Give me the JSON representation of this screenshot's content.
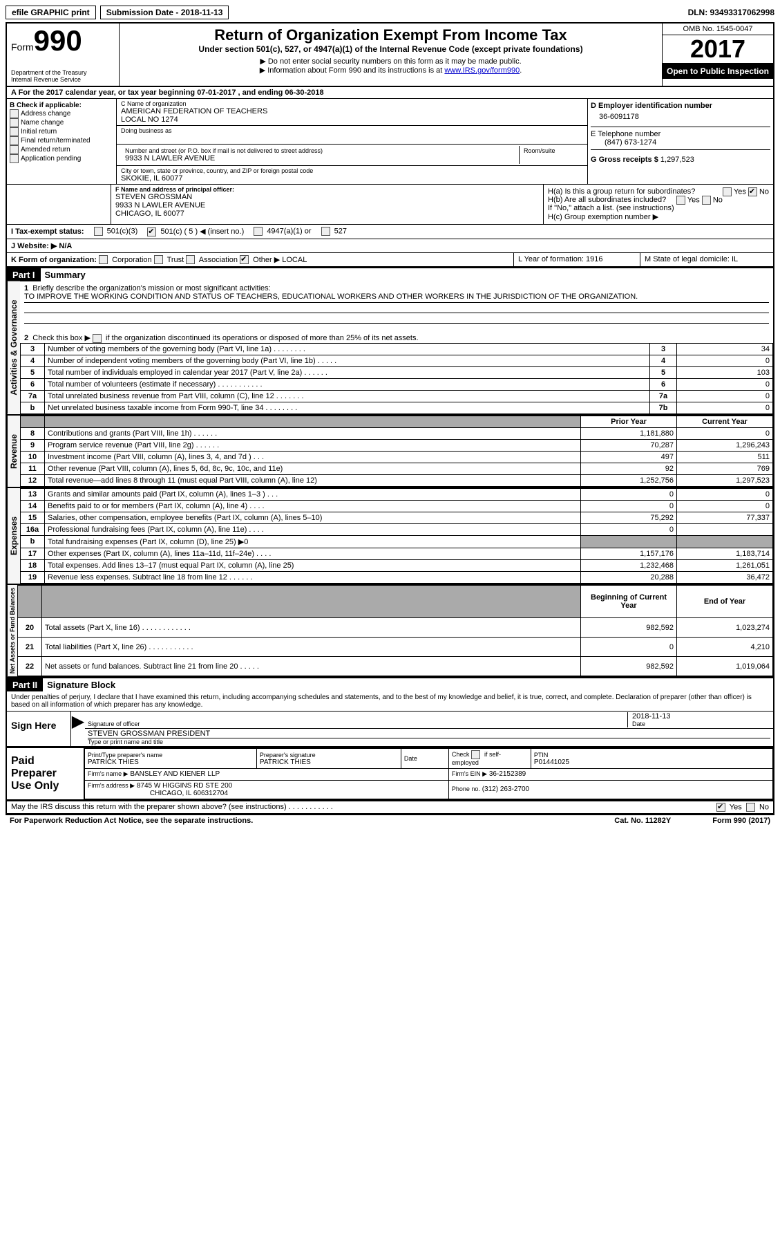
{
  "topbar": {
    "efile": "efile GRAPHIC print",
    "submission": "Submission Date - 2018-11-13",
    "dln": "DLN: 93493317062998"
  },
  "header": {
    "form_word": "Form",
    "form_num": "990",
    "dept1": "Department of the Treasury",
    "dept2": "Internal Revenue Service",
    "title": "Return of Organization Exempt From Income Tax",
    "subtitle": "Under section 501(c), 527, or 4947(a)(1) of the Internal Revenue Code (except private foundations)",
    "note1": "▶ Do not enter social security numbers on this form as it may be made public.",
    "note2_a": "▶ Information about Form 990 and its instructions is at ",
    "note2_link": "www.IRS.gov/form990",
    "omb": "OMB No. 1545-0047",
    "year": "2017",
    "open": "Open to Public Inspection"
  },
  "rowA": "A   For the 2017 calendar year, or tax year beginning 07-01-2017   , and ending 06-30-2018",
  "B": {
    "hdr": "B Check if applicable:",
    "c1": "Address change",
    "c2": "Name change",
    "c3": "Initial return",
    "c4": "Final return/terminated",
    "c5": "Amended return",
    "c6": "Application pending"
  },
  "C": {
    "name_lbl": "C Name of organization",
    "name1": "AMERICAN FEDERATION OF TEACHERS",
    "name2": "LOCAL NO 1274",
    "dba_lbl": "Doing business as",
    "addr_lbl": "Number and street (or P.O. box if mail is not delivered to street address)",
    "room_lbl": "Room/suite",
    "addr": "9933 N LAWLER AVENUE",
    "city_lbl": "City or town, state or province, country, and ZIP or foreign postal code",
    "city": "SKOKIE, IL  60077"
  },
  "D": {
    "lbl": "D Employer identification number",
    "val": "36-6091178"
  },
  "E": {
    "lbl": "E Telephone number",
    "val": "(847) 673-1274"
  },
  "G": {
    "lbl": "G Gross receipts $",
    "val": "1,297,523"
  },
  "F": {
    "lbl": "F  Name and address of principal officer:",
    "l1": "STEVEN GROSSMAN",
    "l2": "9933 N LAWLER AVENUE",
    "l3": "CHICAGO, IL  60077"
  },
  "H": {
    "a": "H(a)  Is this a group return for subordinates?",
    "b": "H(b)  Are all subordinates included?",
    "b2": "If \"No,\" attach a list. (see instructions)",
    "c": "H(c)  Group exemption number ▶",
    "yes": "Yes",
    "no": "No"
  },
  "I": {
    "lbl": "I   Tax-exempt status:",
    "o1": "501(c)(3)",
    "o2": "501(c) ( 5 ) ◀ (insert no.)",
    "o3": "4947(a)(1) or",
    "o4": "527"
  },
  "J": "J  Website: ▶  N/A",
  "K": {
    "lbl": "K Form of organization:",
    "o1": "Corporation",
    "o2": "Trust",
    "o3": "Association",
    "o4": "Other ▶",
    "other": "LOCAL"
  },
  "L": "L Year of formation: 1916",
  "M": "M State of legal domicile: IL",
  "part1": {
    "hdr": "Part I",
    "title": "Summary"
  },
  "summary": {
    "l1": "Briefly describe the organization's mission or most significant activities:",
    "l1v": "TO IMPROVE THE WORKING CONDITION AND STATUS OF TEACHERS, EDUCATIONAL WORKERS AND OTHER WORKERS IN THE JURISDICTION OF THE ORGANIZATION.",
    "l2a": "Check this box ▶",
    "l2b": "if the organization discontinued its operations or disposed of more than 25% of its net assets.",
    "rows_gov": [
      {
        "n": "3",
        "d": "Number of voting members of the governing body (Part VI, line 1a)   .     .     .     .     .     .     .     .",
        "b": "3",
        "v": "34"
      },
      {
        "n": "4",
        "d": "Number of independent voting members of the governing body (Part VI, line 1b)   .     .     .     .     .",
        "b": "4",
        "v": "0"
      },
      {
        "n": "5",
        "d": "Total number of individuals employed in calendar year 2017 (Part V, line 2a)   .     .     .     .     .     .",
        "b": "5",
        "v": "103"
      },
      {
        "n": "6",
        "d": "Total number of volunteers (estimate if necessary)   .     .     .     .     .     .     .     .     .     .     .",
        "b": "6",
        "v": "0"
      },
      {
        "n": "7a",
        "d": "Total unrelated business revenue from Part VIII, column (C), line 12   .     .     .     .     .     .     .",
        "b": "7a",
        "v": "0"
      },
      {
        "n": "b",
        "d": "Net unrelated business taxable income from Form 990-T, line 34   .     .     .     .     .     .     .     .",
        "b": "7b",
        "v": "0"
      }
    ],
    "col_prior": "Prior Year",
    "col_curr": "Current Year",
    "rows_rev": [
      {
        "n": "8",
        "d": "Contributions and grants (Part VIII, line 1h)   .     .     .     .     .     .",
        "p": "1,181,880",
        "c": "0"
      },
      {
        "n": "9",
        "d": "Program service revenue (Part VIII, line 2g)   .     .     .     .     .     .",
        "p": "70,287",
        "c": "1,296,243"
      },
      {
        "n": "10",
        "d": "Investment income (Part VIII, column (A), lines 3, 4, and 7d )   .     .     .",
        "p": "497",
        "c": "511"
      },
      {
        "n": "11",
        "d": "Other revenue (Part VIII, column (A), lines 5, 6d, 8c, 9c, 10c, and 11e)",
        "p": "92",
        "c": "769"
      },
      {
        "n": "12",
        "d": "Total revenue—add lines 8 through 11 (must equal Part VIII, column (A), line 12)",
        "p": "1,252,756",
        "c": "1,297,523"
      }
    ],
    "rows_exp": [
      {
        "n": "13",
        "d": "Grants and similar amounts paid (Part IX, column (A), lines 1–3 )   .     .     .",
        "p": "0",
        "c": "0"
      },
      {
        "n": "14",
        "d": "Benefits paid to or for members (Part IX, column (A), line 4)   .     .     .     .",
        "p": "0",
        "c": "0"
      },
      {
        "n": "15",
        "d": "Salaries, other compensation, employee benefits (Part IX, column (A), lines 5–10)",
        "p": "75,292",
        "c": "77,337"
      },
      {
        "n": "16a",
        "d": "Professional fundraising fees (Part IX, column (A), line 11e)   .     .     .     .",
        "p": "0",
        "c": ""
      },
      {
        "n": "b",
        "d": "Total fundraising expenses (Part IX, column (D), line 25) ▶0",
        "p": "",
        "c": "",
        "shaded": true
      },
      {
        "n": "17",
        "d": "Other expenses (Part IX, column (A), lines 11a–11d, 11f–24e)   .     .     .     .",
        "p": "1,157,176",
        "c": "1,183,714"
      },
      {
        "n": "18",
        "d": "Total expenses. Add lines 13–17 (must equal Part IX, column (A), line 25)",
        "p": "1,232,468",
        "c": "1,261,051"
      },
      {
        "n": "19",
        "d": "Revenue less expenses. Subtract line 18 from line 12   .     .     .     .     .     .",
        "p": "20,288",
        "c": "36,472"
      }
    ],
    "col_beg": "Beginning of Current Year",
    "col_end": "End of Year",
    "rows_net": [
      {
        "n": "20",
        "d": "Total assets (Part X, line 16)   .     .     .     .     .     .     .     .     .     .     .     .",
        "p": "982,592",
        "c": "1,023,274"
      },
      {
        "n": "21",
        "d": "Total liabilities (Part X, line 26)   .     .     .     .     .     .     .     .     .     .     .",
        "p": "0",
        "c": "4,210"
      },
      {
        "n": "22",
        "d": "Net assets or fund balances. Subtract line 21 from line 20   .     .     .     .     .",
        "p": "982,592",
        "c": "1,019,064"
      }
    ]
  },
  "vtabs": {
    "gov": "Activities & Governance",
    "rev": "Revenue",
    "exp": "Expenses",
    "net": "Net Assets or Fund Balances"
  },
  "part2": {
    "hdr": "Part II",
    "title": "Signature Block"
  },
  "sig": {
    "decl": "Under penalties of perjury, I declare that I have examined this return, including accompanying schedules and statements, and to the best of my knowledge and belief, it is true, correct, and complete. Declaration of preparer (other than officer) is based on all information of which preparer has any knowledge.",
    "sign_here": "Sign Here",
    "sig_officer": "Signature of officer",
    "date_lbl": "Date",
    "date": "2018-11-13",
    "name_title": "STEVEN GROSSMAN  PRESIDENT",
    "type_lbl": "Type or print name and title"
  },
  "prep": {
    "hdr": "Paid Preparer Use Only",
    "name_lbl": "Print/Type preparer's name",
    "name": "PATRICK THIES",
    "psig_lbl": "Preparer's signature",
    "psig": "PATRICK THIES",
    "pdate_lbl": "Date",
    "check_lbl": "Check",
    "self_emp": "if self-employed",
    "ptin_lbl": "PTIN",
    "ptin": "P01441025",
    "firm_name_lbl": "Firm's name   ▶",
    "firm_name": "BANSLEY AND KIENER LLP",
    "firm_ein_lbl": "Firm's EIN ▶",
    "firm_ein": "36-2152389",
    "firm_addr_lbl": "Firm's address ▶",
    "firm_addr1": "8745 W HIGGINS RD STE 200",
    "firm_addr2": "CHICAGO, IL  606312704",
    "phone_lbl": "Phone no.",
    "phone": "(312) 263-2700"
  },
  "discuss": {
    "q": "May the IRS discuss this return with the preparer shown above? (see instructions)   .     .     .     .     .     .     .     .     .     .     .",
    "yes": "Yes",
    "no": "No"
  },
  "footer": {
    "pra": "For Paperwork Reduction Act Notice, see the separate instructions.",
    "cat": "Cat. No. 11282Y",
    "form": "Form 990 (2017)"
  }
}
